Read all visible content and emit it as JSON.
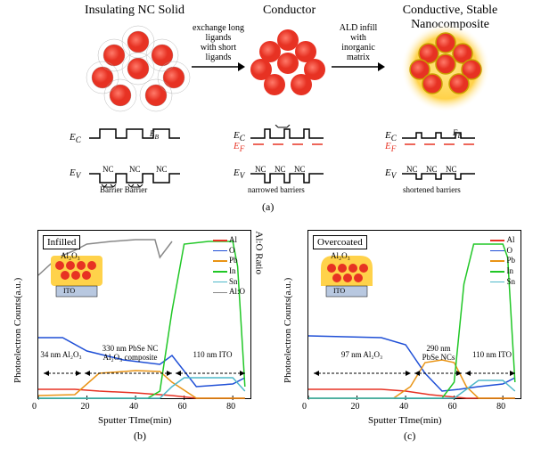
{
  "panel_a": {
    "titles": {
      "left": "Insulating NC Solid",
      "mid": "Conductor",
      "right": "Conductive, Stable\nNanocomposite"
    },
    "arrows": {
      "left": "exchange long\nligands\nwith short\nligands",
      "right": "ALD infill\nwith\ninorganic\nmatrix"
    },
    "energy_labels": {
      "ec": "E",
      "ec_sub": "C",
      "ev": "E",
      "ev_sub": "V",
      "eb": "E",
      "eb_sub": "B",
      "ef": "E",
      "ef_sub": "F"
    },
    "nc": "NC",
    "barrier": "Barrier",
    "barrier_text": {
      "left": "Barrier  Barrier",
      "mid": "narrowed barriers",
      "right": "shortened barriers"
    },
    "caption": "(a)",
    "colors": {
      "red": "#e73223",
      "yellow": "#ffd24a",
      "black": "#000000"
    }
  },
  "panel_b": {
    "box": "Infilled",
    "y_label": "Photoelectron Counts(a.u.)",
    "y2_label": "Al:O Ratio",
    "x_label": "Sputter TIme(min)",
    "caption": "(b)",
    "x_ticks": [
      "0",
      "20",
      "40",
      "60",
      "80"
    ],
    "inset": {
      "top": "Al₂O₃",
      "bottom": "ITO"
    },
    "regions": {
      "r1": "34 nm Al₂O₃",
      "r2": "330 nm PbSe NC\nAl₂O₃ composite",
      "r3": "110 nm ITO"
    },
    "legend": [
      {
        "name": "Al",
        "color": "#e73223"
      },
      {
        "name": "O",
        "color": "#1f4fd6"
      },
      {
        "name": "Pb",
        "color": "#e99415"
      },
      {
        "name": "In",
        "color": "#20c726"
      },
      {
        "name": "Sn",
        "color": "#4fb8c9"
      },
      {
        "name": "Al:O",
        "color": "#888888"
      }
    ],
    "series": {
      "Al": [
        [
          0,
          178
        ],
        [
          15,
          178
        ],
        [
          25,
          180
        ],
        [
          40,
          182
        ],
        [
          55,
          185
        ],
        [
          65,
          188
        ],
        [
          85,
          188
        ]
      ],
      "O": [
        [
          0,
          120
        ],
        [
          10,
          120
        ],
        [
          20,
          135
        ],
        [
          35,
          145
        ],
        [
          50,
          150
        ],
        [
          55,
          140
        ],
        [
          65,
          175
        ],
        [
          80,
          172
        ],
        [
          85,
          165
        ]
      ],
      "Pb": [
        [
          0,
          185
        ],
        [
          15,
          184
        ],
        [
          25,
          160
        ],
        [
          40,
          157
        ],
        [
          50,
          158
        ],
        [
          55,
          170
        ],
        [
          65,
          188
        ],
        [
          85,
          188
        ]
      ],
      "In": [
        [
          0,
          188
        ],
        [
          45,
          188
        ],
        [
          50,
          180
        ],
        [
          55,
          90
        ],
        [
          60,
          15
        ],
        [
          70,
          12
        ],
        [
          80,
          12
        ],
        [
          82,
          40
        ],
        [
          85,
          175
        ]
      ],
      "Sn": [
        [
          0,
          188
        ],
        [
          50,
          188
        ],
        [
          55,
          175
        ],
        [
          60,
          165
        ],
        [
          80,
          165
        ],
        [
          85,
          180
        ]
      ],
      "AlO": [
        [
          0,
          50
        ],
        [
          8,
          30
        ],
        [
          15,
          22
        ],
        [
          20,
          15
        ],
        [
          30,
          12
        ],
        [
          40,
          10
        ],
        [
          48,
          10
        ],
        [
          50,
          30
        ],
        [
          55,
          12
        ]
      ]
    }
  },
  "panel_c": {
    "box": "Overcoated",
    "y_label": "Photoelectron Counts(a.u.)",
    "x_label": "Sputter TIme(min)",
    "caption": "(c)",
    "x_ticks": [
      "0",
      "20",
      "40",
      "60",
      "80"
    ],
    "inset": {
      "top": "Al₂O₃",
      "bottom": "ITO"
    },
    "regions": {
      "r1": "97 nm Al₂O₃",
      "r2": "290 nm\nPbSe NCs",
      "r3": "110 nm ITO"
    },
    "legend": [
      {
        "name": "Al",
        "color": "#e73223"
      },
      {
        "name": "O",
        "color": "#1f4fd6"
      },
      {
        "name": "Pb",
        "color": "#e99415"
      },
      {
        "name": "In",
        "color": "#20c726"
      },
      {
        "name": "Sn",
        "color": "#4fb8c9"
      }
    ],
    "series": {
      "Al": [
        [
          0,
          178
        ],
        [
          30,
          178
        ],
        [
          40,
          180
        ],
        [
          50,
          184
        ],
        [
          65,
          188
        ],
        [
          85,
          188
        ]
      ],
      "O": [
        [
          0,
          118
        ],
        [
          30,
          120
        ],
        [
          40,
          128
        ],
        [
          48,
          160
        ],
        [
          55,
          180
        ],
        [
          62,
          178
        ],
        [
          70,
          175
        ],
        [
          80,
          172
        ],
        [
          85,
          165
        ]
      ],
      "Pb": [
        [
          0,
          188
        ],
        [
          35,
          188
        ],
        [
          42,
          175
        ],
        [
          48,
          148
        ],
        [
          55,
          145
        ],
        [
          60,
          148
        ],
        [
          65,
          175
        ],
        [
          70,
          188
        ],
        [
          85,
          188
        ]
      ],
      "In": [
        [
          0,
          188
        ],
        [
          55,
          188
        ],
        [
          60,
          170
        ],
        [
          64,
          60
        ],
        [
          68,
          15
        ],
        [
          80,
          15
        ],
        [
          82,
          30
        ],
        [
          85,
          170
        ]
      ],
      "Sn": [
        [
          0,
          188
        ],
        [
          60,
          188
        ],
        [
          65,
          178
        ],
        [
          70,
          168
        ],
        [
          80,
          168
        ],
        [
          85,
          180
        ]
      ]
    }
  }
}
